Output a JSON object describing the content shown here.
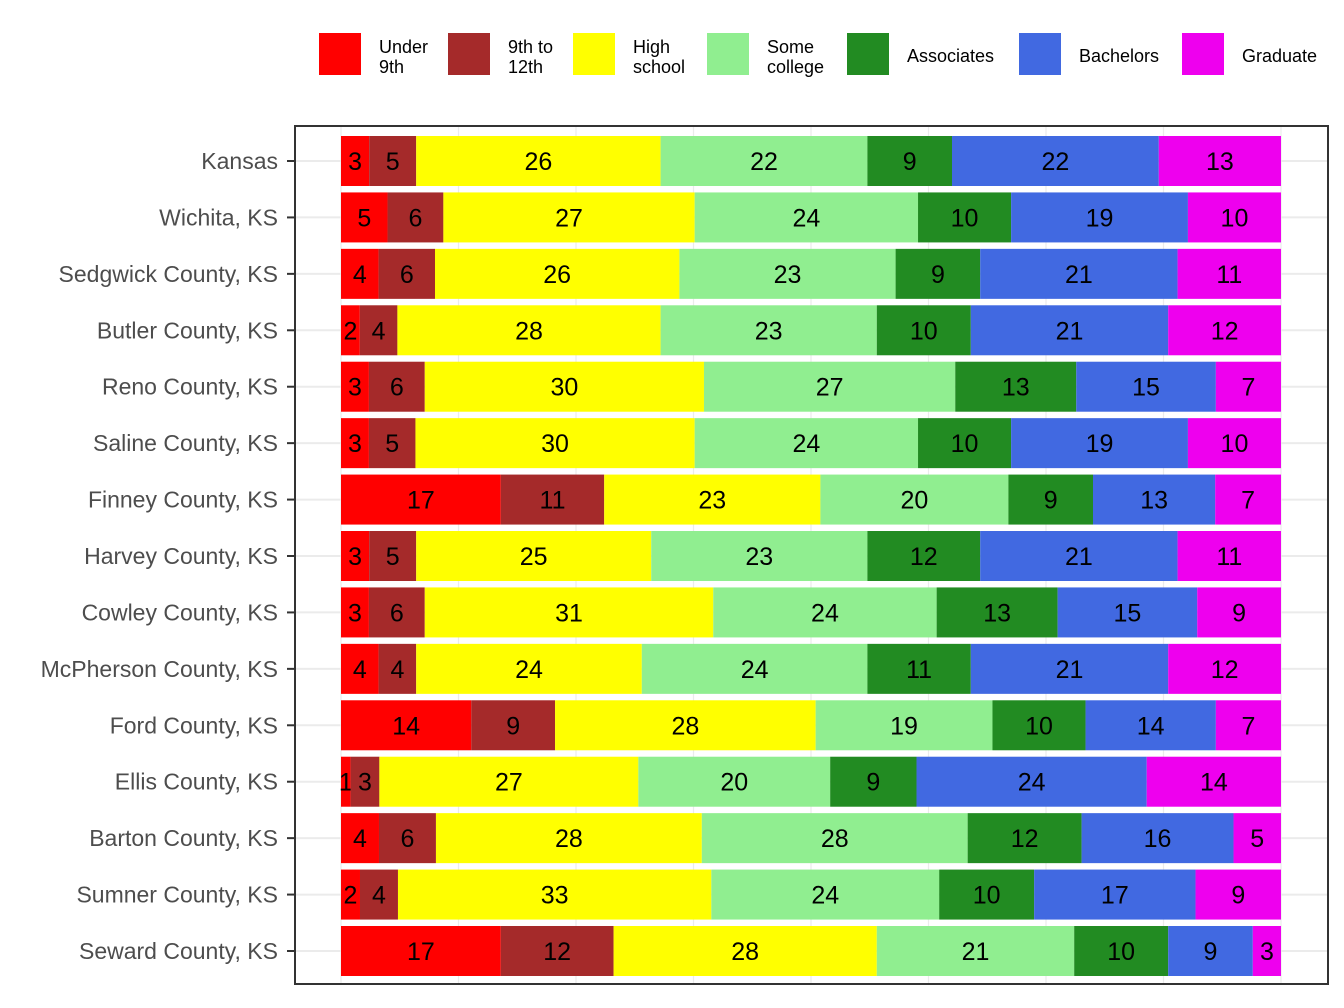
{
  "chart_data": {
    "type": "bar",
    "orientation": "horizontal",
    "stacked": true,
    "title": "",
    "xlabel": "",
    "ylabel": "",
    "xlim": [
      0,
      100
    ],
    "grid": true,
    "legend_position": "top",
    "legend": [
      {
        "name": "Under\n9th",
        "color": "#FF0000"
      },
      {
        "name": "9th to\n12th",
        "color": "#A52A2A"
      },
      {
        "name": "High\nschool",
        "color": "#FFFF00"
      },
      {
        "name": "Some\ncollege",
        "color": "#90EE90"
      },
      {
        "name": "Associates",
        "color": "#228B22"
      },
      {
        "name": "Bachelors",
        "color": "#4169E1"
      },
      {
        "name": "Graduate",
        "color": "#EE00EE"
      }
    ],
    "categories": [
      "Kansas",
      "Wichita, KS",
      "Sedgwick County, KS",
      "Butler County, KS",
      "Reno County, KS",
      "Saline County, KS",
      "Finney County, KS",
      "Harvey County, KS",
      "Cowley County, KS",
      "McPherson County, KS",
      "Ford County, KS",
      "Ellis County, KS",
      "Barton County, KS",
      "Sumner County, KS",
      "Seward County, KS"
    ],
    "values": [
      [
        3,
        5,
        26,
        22,
        9,
        22,
        13
      ],
      [
        5,
        6,
        27,
        24,
        10,
        19,
        10
      ],
      [
        4,
        6,
        26,
        23,
        9,
        21,
        11
      ],
      [
        2,
        4,
        28,
        23,
        10,
        21,
        12
      ],
      [
        3,
        6,
        30,
        27,
        13,
        15,
        7
      ],
      [
        3,
        5,
        30,
        24,
        10,
        19,
        10
      ],
      [
        17,
        11,
        23,
        20,
        9,
        13,
        7
      ],
      [
        3,
        5,
        25,
        23,
        12,
        21,
        11
      ],
      [
        3,
        6,
        31,
        24,
        13,
        15,
        9
      ],
      [
        4,
        4,
        24,
        24,
        11,
        21,
        12
      ],
      [
        14,
        9,
        28,
        19,
        10,
        14,
        7
      ],
      [
        1,
        3,
        27,
        20,
        9,
        24,
        14
      ],
      [
        4,
        6,
        28,
        28,
        12,
        16,
        5
      ],
      [
        2,
        4,
        33,
        24,
        10,
        17,
        9
      ],
      [
        17,
        12,
        28,
        21,
        10,
        9,
        3
      ]
    ]
  }
}
